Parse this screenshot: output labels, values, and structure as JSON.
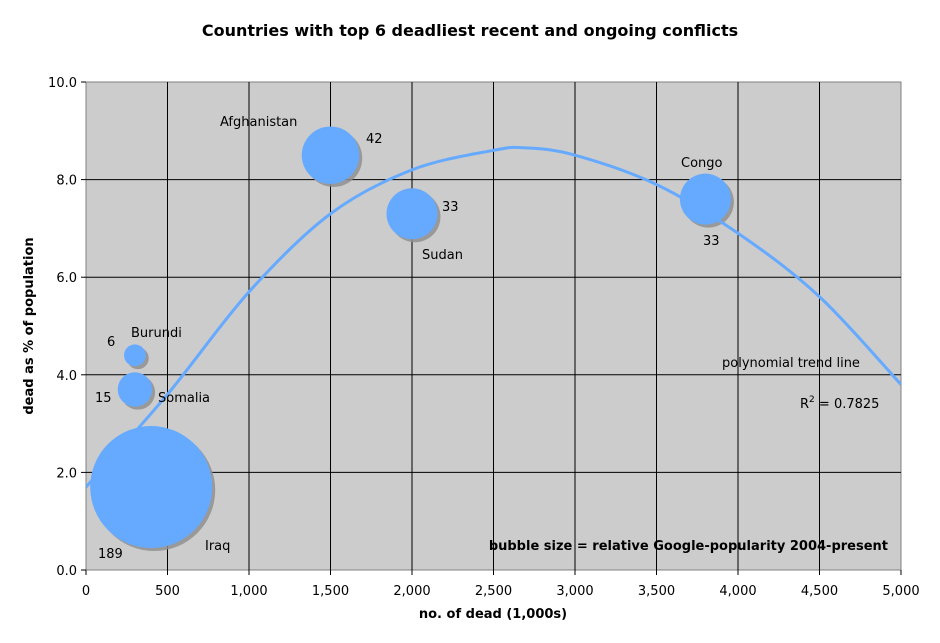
{
  "chart_data": {
    "type": "bubble",
    "title": "Countries with top 6 deadliest recent and ongoing conflicts",
    "xlabel": "no. of dead (1,000s)",
    "ylabel": "dead as % of population",
    "xlim": [
      0,
      5000
    ],
    "ylim": [
      0,
      10
    ],
    "x_ticks": [
      0,
      500,
      1000,
      1500,
      2000,
      2500,
      3000,
      3500,
      4000,
      4500,
      5000
    ],
    "x_tick_labels": [
      "0",
      "500",
      "1,000",
      "1,500",
      "2,000",
      "2,500",
      "3,000",
      "3,500",
      "4,000",
      "4,500",
      "5,000"
    ],
    "y_ticks": [
      0,
      2,
      4,
      6,
      8,
      10
    ],
    "y_tick_labels": [
      "0.0",
      "2.0",
      "4.0",
      "6.0",
      "8.0",
      "10.0"
    ],
    "grid": true,
    "bubble_color": "#66aaff",
    "plot_background": "#cccccc",
    "points": [
      {
        "name": "Iraq",
        "x": 400,
        "y": 1.7,
        "size": 189
      },
      {
        "name": "Afghanistan",
        "x": 1500,
        "y": 8.5,
        "size": 42
      },
      {
        "name": "Sudan",
        "x": 2000,
        "y": 7.3,
        "size": 33
      },
      {
        "name": "Congo",
        "x": 3800,
        "y": 7.6,
        "size": 33
      },
      {
        "name": "Burundi",
        "x": 300,
        "y": 4.4,
        "size": 6
      },
      {
        "name": "Somalia",
        "x": 300,
        "y": 3.7,
        "size": 15
      }
    ],
    "trend_line": {
      "label": "polynomial trend line",
      "r2_prefix": "R",
      "r2_sup": "2",
      "r2_value": " = 0.7825",
      "color": "#66aaff",
      "points": [
        [
          0,
          1.7
        ],
        [
          500,
          3.6
        ],
        [
          1000,
          5.7
        ],
        [
          1500,
          7.3
        ],
        [
          2000,
          8.2
        ],
        [
          2500,
          8.6
        ],
        [
          2700,
          8.65
        ],
        [
          3000,
          8.5
        ],
        [
          3500,
          7.9
        ],
        [
          4000,
          6.9
        ],
        [
          4500,
          5.6
        ],
        [
          5000,
          3.8
        ]
      ]
    },
    "bubble_size_note": "bubble size = relative Google-popularity 2004-present"
  }
}
